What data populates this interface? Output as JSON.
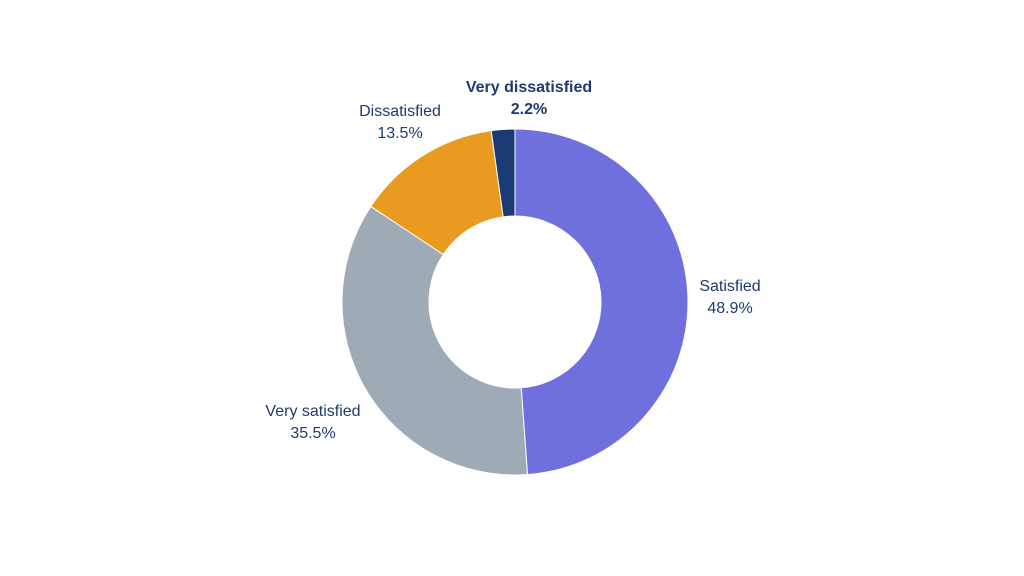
{
  "chart_data": {
    "type": "pie",
    "style": "donut",
    "categories": [
      "Satisfied",
      "Very satisfied",
      "Dissatisfied",
      "Very dissatisfied"
    ],
    "values": [
      48.9,
      35.5,
      13.5,
      2.2
    ],
    "value_labels": [
      "48.9%",
      "35.5%",
      "13.5%",
      "2.2%"
    ],
    "colors": [
      "#6f70de",
      "#9eabb7",
      "#e89b1e",
      "#1b3a73"
    ],
    "emphasized": [
      "Very dissatisfied"
    ],
    "direction": "clockwise",
    "start": "top",
    "legend": "none"
  }
}
